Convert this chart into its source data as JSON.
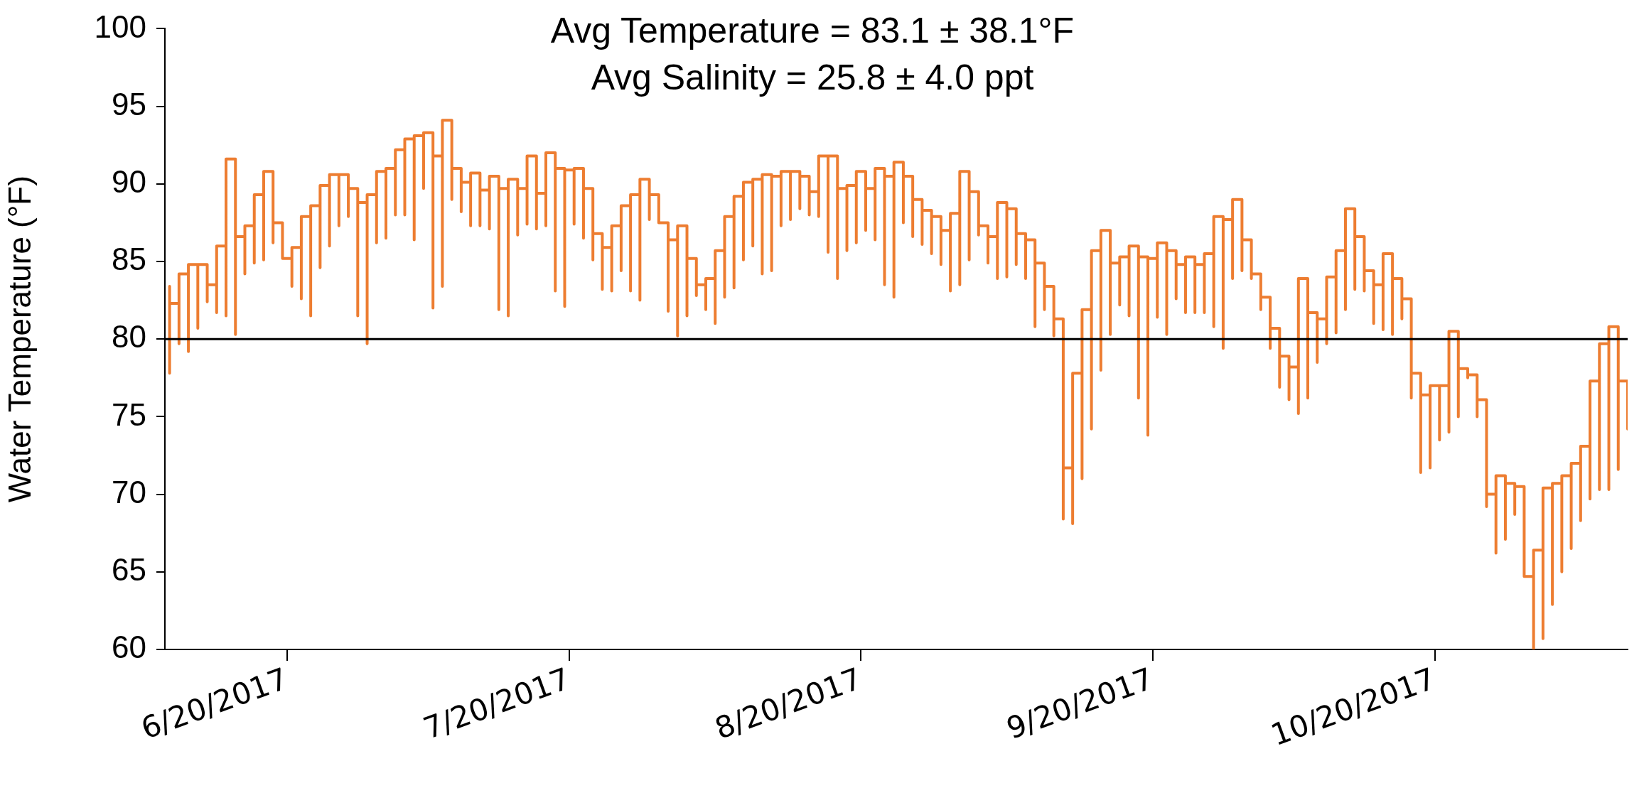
{
  "chart_data": {
    "type": "step",
    "title": "Avg Temperature = 83.1 ± 38.1°F",
    "subtitle": "Avg Salinity = 25.8 ± 4.0 ppt",
    "ylabel": "Water Temperature (°F)",
    "xlim": [
      "2017-06-07",
      "2017-11-09T12:00"
    ],
    "xticks": [
      {
        "value": "2017-06-20",
        "label": "6/20/2017"
      },
      {
        "value": "2017-07-20",
        "label": "7/20/2017"
      },
      {
        "value": "2017-08-20",
        "label": "8/20/2017"
      },
      {
        "value": "2017-09-20",
        "label": "9/20/2017"
      },
      {
        "value": "2017-10-20",
        "label": "10/20/2017"
      }
    ],
    "ylim": [
      60,
      100
    ],
    "yticks": [
      60,
      65,
      70,
      75,
      80,
      85,
      90,
      95,
      100
    ],
    "grid": false,
    "ref_lines": [
      {
        "axis": "y",
        "value": 80,
        "color": "#000000"
      }
    ],
    "color": "#ed7d31",
    "x": [
      "2017-06-07T12:00",
      "2017-06-07T12:00",
      "2017-06-07T12:00",
      "2017-06-08T12:00",
      "2017-06-08T12:00",
      "2017-06-08T12:00",
      "2017-06-09T12:00",
      "2017-06-09T12:00",
      "2017-06-09T12:00",
      "2017-06-10T12:00",
      "2017-06-10T12:00",
      "2017-06-10T12:00",
      "2017-06-11T12:00",
      "2017-06-11T12:00",
      "2017-06-11T12:00",
      "2017-06-12T12:00",
      "2017-06-12T12:00",
      "2017-06-12T12:00",
      "2017-06-13T12:00",
      "2017-06-13T12:00",
      "2017-06-13T12:00",
      "2017-06-14T12:00",
      "2017-06-14T12:00",
      "2017-06-14T12:00",
      "2017-06-15T12:00",
      "2017-06-15T12:00",
      "2017-06-15T12:00",
      "2017-06-16T12:00",
      "2017-06-16T12:00",
      "2017-06-16T12:00",
      "2017-06-17T12:00",
      "2017-06-17T12:00",
      "2017-06-17T12:00",
      "2017-06-18T12:00",
      "2017-06-18T12:00",
      "2017-06-18T12:00",
      "2017-06-19T12:00",
      "2017-06-19T12:00",
      "2017-06-19T12:00",
      "2017-06-20T12:00",
      "2017-06-20T12:00",
      "2017-06-20T12:00",
      "2017-06-21T12:00",
      "2017-06-21T12:00",
      "2017-06-21T12:00",
      "2017-06-22T12:00",
      "2017-06-22T12:00",
      "2017-06-22T12:00",
      "2017-06-23T12:00",
      "2017-06-23T12:00",
      "2017-06-23T12:00",
      "2017-06-24T12:00",
      "2017-06-24T12:00",
      "2017-06-24T12:00",
      "2017-06-25T12:00",
      "2017-06-25T12:00",
      "2017-06-25T12:00",
      "2017-06-26T12:00",
      "2017-06-26T12:00",
      "2017-06-26T12:00",
      "2017-06-27T12:00",
      "2017-06-27T12:00",
      "2017-06-27T12:00",
      "2017-06-28T12:00",
      "2017-06-28T12:00",
      "2017-06-28T12:00",
      "2017-06-29T12:00",
      "2017-06-29T12:00",
      "2017-06-29T12:00",
      "2017-06-30T12:00",
      "2017-06-30T12:00",
      "2017-06-30T12:00",
      "2017-07-01T12:00",
      "2017-07-01T12:00",
      "2017-07-01T12:00",
      "2017-07-02T12:00",
      "2017-07-02T12:00",
      "2017-07-02T12:00",
      "2017-07-03T12:00",
      "2017-07-03T12:00",
      "2017-07-03T12:00",
      "2017-07-04T12:00",
      "2017-07-04T12:00",
      "2017-07-04T12:00",
      "2017-07-05T12:00",
      "2017-07-05T12:00",
      "2017-07-05T12:00",
      "2017-07-06T12:00",
      "2017-07-06T12:00",
      "2017-07-06T12:00",
      "2017-07-07T12:00",
      "2017-07-07T12:00",
      "2017-07-07T12:00",
      "2017-07-08T12:00",
      "2017-07-08T12:00",
      "2017-07-08T12:00",
      "2017-07-09T12:00",
      "2017-07-09T12:00",
      "2017-07-09T12:00",
      "2017-07-10T12:00",
      "2017-07-10T12:00",
      "2017-07-10T12:00",
      "2017-07-11T12:00",
      "2017-07-11T12:00",
      "2017-07-11T12:00",
      "2017-07-12T12:00",
      "2017-07-12T12:00",
      "2017-07-12T12:00",
      "2017-07-13T12:00",
      "2017-07-13T12:00",
      "2017-07-13T12:00",
      "2017-07-14T12:00",
      "2017-07-14T12:00",
      "2017-07-14T12:00",
      "2017-07-15T12:00",
      "2017-07-15T12:00",
      "2017-07-15T12:00",
      "2017-07-16T12:00",
      "2017-07-16T12:00",
      "2017-07-16T12:00",
      "2017-07-17T12:00",
      "2017-07-17T12:00",
      "2017-07-17T12:00",
      "2017-07-18T12:00",
      "2017-07-18T12:00",
      "2017-07-18T12:00",
      "2017-07-19T12:00",
      "2017-07-19T12:00",
      "2017-07-19T12:00",
      "2017-07-20T12:00",
      "2017-07-20T12:00",
      "2017-07-20T12:00",
      "2017-07-21T12:00",
      "2017-07-21T12:00",
      "2017-07-21T12:00",
      "2017-07-22T12:00",
      "2017-07-22T12:00",
      "2017-07-22T12:00",
      "2017-07-23T12:00",
      "2017-07-23T12:00",
      "2017-07-23T12:00",
      "2017-07-24T12:00",
      "2017-07-24T12:00",
      "2017-07-24T12:00",
      "2017-07-25T12:00",
      "2017-07-25T12:00",
      "2017-07-25T12:00",
      "2017-07-26T12:00",
      "2017-07-26T12:00",
      "2017-07-26T12:00",
      "2017-07-27T12:00",
      "2017-07-27T12:00",
      "2017-07-27T12:00",
      "2017-07-28T12:00",
      "2017-07-28T12:00",
      "2017-07-28T12:00",
      "2017-07-29T12:00",
      "2017-07-29T12:00",
      "2017-07-29T12:00",
      "2017-07-30T12:00",
      "2017-07-30T12:00",
      "2017-07-30T12:00",
      "2017-07-31T12:00",
      "2017-07-31T12:00",
      "2017-07-31T12:00",
      "2017-08-01T12:00",
      "2017-08-01T12:00",
      "2017-08-01T12:00",
      "2017-08-02T12:00",
      "2017-08-02T12:00",
      "2017-08-02T12:00",
      "2017-08-03T12:00",
      "2017-08-03T12:00",
      "2017-08-03T12:00",
      "2017-08-04T12:00",
      "2017-08-04T12:00",
      "2017-08-04T12:00",
      "2017-08-05T12:00",
      "2017-08-05T12:00",
      "2017-08-05T12:00",
      "2017-08-06T12:00",
      "2017-08-06T12:00",
      "2017-08-06T12:00",
      "2017-08-07T12:00",
      "2017-08-07T12:00",
      "2017-08-07T12:00",
      "2017-08-08T12:00",
      "2017-08-08T12:00",
      "2017-08-08T12:00",
      "2017-08-09T12:00",
      "2017-08-09T12:00",
      "2017-08-09T12:00",
      "2017-08-10T12:00",
      "2017-08-10T12:00",
      "2017-08-10T12:00",
      "2017-08-11T12:00",
      "2017-08-11T12:00",
      "2017-08-11T12:00",
      "2017-08-12T12:00",
      "2017-08-12T12:00",
      "2017-08-12T12:00",
      "2017-08-13T12:00",
      "2017-08-13T12:00",
      "2017-08-13T12:00",
      "2017-08-14T12:00",
      "2017-08-14T12:00",
      "2017-08-14T12:00",
      "2017-08-15T12:00",
      "2017-08-15T12:00",
      "2017-08-15T12:00",
      "2017-08-16T12:00",
      "2017-08-16T12:00",
      "2017-08-16T12:00",
      "2017-08-17T12:00",
      "2017-08-17T12:00",
      "2017-08-17T12:00",
      "2017-08-18T12:00",
      "2017-08-18T12:00",
      "2017-08-18T12:00",
      "2017-08-19T12:00",
      "2017-08-19T12:00",
      "2017-08-19T12:00",
      "2017-08-20T12:00",
      "2017-08-20T12:00",
      "2017-08-20T12:00",
      "2017-08-21T12:00",
      "2017-08-21T12:00",
      "2017-08-21T12:00",
      "2017-08-22T12:00",
      "2017-08-22T12:00",
      "2017-08-22T12:00",
      "2017-08-23T12:00",
      "2017-08-23T12:00",
      "2017-08-23T12:00",
      "2017-08-24T12:00",
      "2017-08-24T12:00",
      "2017-08-24T12:00",
      "2017-08-25T12:00",
      "2017-08-25T12:00",
      "2017-08-25T12:00",
      "2017-08-26T12:00",
      "2017-08-26T12:00",
      "2017-08-26T12:00",
      "2017-08-27T12:00",
      "2017-08-27T12:00",
      "2017-08-27T12:00",
      "2017-08-28T12:00",
      "2017-08-28T12:00",
      "2017-08-28T12:00",
      "2017-08-29T12:00",
      "2017-08-29T12:00",
      "2017-08-29T12:00",
      "2017-08-30T12:00",
      "2017-08-30T12:00",
      "2017-08-30T12:00",
      "2017-08-31T12:00",
      "2017-08-31T12:00",
      "2017-08-31T12:00",
      "2017-09-01T12:00",
      "2017-09-01T12:00",
      "2017-09-01T12:00",
      "2017-09-02T12:00",
      "2017-09-02T12:00",
      "2017-09-02T12:00",
      "2017-09-03T12:00",
      "2017-09-03T12:00",
      "2017-09-03T12:00",
      "2017-09-04T12:00",
      "2017-09-04T12:00",
      "2017-09-04T12:00",
      "2017-09-05T12:00",
      "2017-09-05T12:00",
      "2017-09-05T12:00",
      "2017-09-06T12:00",
      "2017-09-06T12:00",
      "2017-09-06T12:00",
      "2017-09-07T12:00",
      "2017-09-07T12:00",
      "2017-09-07T12:00",
      "2017-09-08T12:00",
      "2017-09-08T12:00",
      "2017-09-08T12:00",
      "2017-09-09T12:00",
      "2017-09-09T12:00",
      "2017-09-09T12:00",
      "2017-09-10T12:00",
      "2017-09-10T12:00",
      "2017-09-10T12:00",
      "2017-09-11T12:00",
      "2017-09-11T12:00",
      "2017-09-11T12:00",
      "2017-09-12T12:00",
      "2017-09-12T12:00",
      "2017-09-12T12:00",
      "2017-09-13T12:00",
      "2017-09-13T12:00",
      "2017-09-13T12:00",
      "2017-09-14T12:00",
      "2017-09-14T12:00",
      "2017-09-14T12:00",
      "2017-09-15T12:00",
      "2017-09-15T12:00",
      "2017-09-15T12:00",
      "2017-09-16T12:00",
      "2017-09-16T12:00",
      "2017-09-16T12:00",
      "2017-09-17T12:00",
      "2017-09-17T12:00",
      "2017-09-17T12:00",
      "2017-09-18T12:00",
      "2017-09-18T12:00",
      "2017-09-18T12:00",
      "2017-09-19T12:00",
      "2017-09-19T12:00",
      "2017-09-19T12:00",
      "2017-09-20T12:00",
      "2017-09-20T12:00",
      "2017-09-20T12:00",
      "2017-09-21T12:00",
      "2017-09-21T12:00",
      "2017-09-21T12:00",
      "2017-09-22T12:00",
      "2017-09-22T12:00",
      "2017-09-22T12:00",
      "2017-09-23T12:00",
      "2017-09-23T12:00",
      "2017-09-23T12:00",
      "2017-09-24T12:00",
      "2017-09-24T12:00",
      "2017-09-24T12:00",
      "2017-09-25T12:00",
      "2017-09-25T12:00",
      "2017-09-25T12:00",
      "2017-09-26T12:00",
      "2017-09-26T12:00",
      "2017-09-26T12:00",
      "2017-09-27T12:00",
      "2017-09-27T12:00",
      "2017-09-27T12:00",
      "2017-09-28T12:00",
      "2017-09-28T12:00",
      "2017-09-28T12:00",
      "2017-09-29T12:00",
      "2017-09-29T12:00",
      "2017-09-29T12:00",
      "2017-09-30T12:00",
      "2017-09-30T12:00",
      "2017-09-30T12:00",
      "2017-10-01T12:00",
      "2017-10-01T12:00",
      "2017-10-01T12:00",
      "2017-10-02T12:00",
      "2017-10-02T12:00",
      "2017-10-02T12:00",
      "2017-10-03T12:00",
      "2017-10-03T12:00",
      "2017-10-03T12:00",
      "2017-10-04T12:00",
      "2017-10-04T12:00",
      "2017-10-04T12:00",
      "2017-10-05T12:00",
      "2017-10-05T12:00",
      "2017-10-05T12:00",
      "2017-10-06T12:00",
      "2017-10-06T12:00",
      "2017-10-06T12:00",
      "2017-10-07T12:00",
      "2017-10-07T12:00",
      "2017-10-07T12:00",
      "2017-10-08T12:00",
      "2017-10-08T12:00",
      "2017-10-08T12:00",
      "2017-10-09T12:00",
      "2017-10-09T12:00",
      "2017-10-09T12:00",
      "2017-10-10T12:00",
      "2017-10-10T12:00",
      "2017-10-10T12:00",
      "2017-10-11T12:00",
      "2017-10-11T12:00",
      "2017-10-11T12:00",
      "2017-10-12T12:00",
      "2017-10-12T12:00",
      "2017-10-12T12:00",
      "2017-10-13T12:00",
      "2017-10-13T12:00",
      "2017-10-13T12:00",
      "2017-10-14T12:00",
      "2017-10-14T12:00",
      "2017-10-14T12:00",
      "2017-10-15T12:00",
      "2017-10-15T12:00",
      "2017-10-15T12:00",
      "2017-10-16T12:00",
      "2017-10-16T12:00",
      "2017-10-16T12:00",
      "2017-10-17T12:00",
      "2017-10-17T12:00",
      "2017-10-17T12:00",
      "2017-10-18T12:00",
      "2017-10-18T12:00",
      "2017-10-18T12:00",
      "2017-10-19T12:00",
      "2017-10-19T12:00",
      "2017-10-19T12:00",
      "2017-10-20T12:00",
      "2017-10-20T12:00",
      "2017-10-20T12:00",
      "2017-10-21T12:00",
      "2017-10-21T12:00",
      "2017-10-21T12:00",
      "2017-10-22T12:00",
      "2017-10-22T12:00",
      "2017-10-22T12:00",
      "2017-10-23T12:00",
      "2017-10-23T12:00",
      "2017-10-23T12:00",
      "2017-10-24T12:00",
      "2017-10-24T12:00",
      "2017-10-24T12:00",
      "2017-10-25T12:00",
      "2017-10-25T12:00",
      "2017-10-25T12:00",
      "2017-10-26T12:00",
      "2017-10-26T12:00",
      "2017-10-26T12:00",
      "2017-10-27T12:00",
      "2017-10-27T12:00",
      "2017-10-27T12:00",
      "2017-10-28T12:00",
      "2017-10-28T12:00",
      "2017-10-28T12:00",
      "2017-10-29T12:00",
      "2017-10-29T12:00",
      "2017-10-29T12:00",
      "2017-10-30T12:00",
      "2017-10-30T12:00",
      "2017-10-30T12:00",
      "2017-10-31T12:00",
      "2017-10-31T12:00",
      "2017-10-31T12:00",
      "2017-11-01T12:00",
      "2017-11-01T12:00",
      "2017-11-01T12:00",
      "2017-11-02T12:00",
      "2017-11-02T12:00",
      "2017-11-02T12:00",
      "2017-11-03T12:00",
      "2017-11-03T12:00",
      "2017-11-03T12:00",
      "2017-11-04T12:00",
      "2017-11-04T12:00",
      "2017-11-04T12:00",
      "2017-11-05T12:00",
      "2017-11-05T12:00",
      "2017-11-05T12:00",
      "2017-11-06T12:00",
      "2017-11-06T12:00",
      "2017-11-06T12:00",
      "2017-11-07T12:00",
      "2017-11-07T12:00",
      "2017-11-07T12:00",
      "2017-11-08T12:00",
      "2017-11-08T12:00",
      "2017-11-08T12:00",
      "2017-11-09T12:00",
      "2017-11-09T12:00",
      "2017-11-09T12:00"
    ],
    "values": [
      83.4,
      77.8,
      82.1,
      82.3,
      79.7,
      80.3,
      84.2,
      79.2,
      82.5,
      84.8,
      80.7,
      83.7,
      84.8,
      82.4,
      82.9,
      83.5,
      81.7,
      81.7,
      86.0,
      81.5,
      83.7,
      91.6,
      80.3,
      85.7,
      86.6,
      84.2,
      86.5,
      87.3,
      84.9,
      85.9,
      89.3,
      85.1,
      86.9,
      90.8,
      86.2,
      87.7,
      87.5,
      85.3,
      85.3,
      85.2,
      83.4,
      84.0,
      85.9,
      82.6,
      84.3,
      87.9,
      81.5,
      86.8,
      88.6,
      84.6,
      87.3,
      89.9,
      86.0,
      89.1,
      90.6,
      87.3,
      89.0,
      90.6,
      87.9,
      88.1,
      89.7,
      81.5,
      82.8,
      88.8,
      79.7,
      87.1,
      89.3,
      86.2,
      87.7,
      90.8,
      86.5,
      88.7,
      91.0,
      88.0,
      88.7,
      92.2,
      88.0,
      90.1,
      92.9,
      86.4,
      91.4,
      93.1,
      89.7,
      91.4,
      93.3,
      82.0,
      83.6,
      91.8,
      83.4,
      90.7,
      94.1,
      89.0,
      90.9,
      91.0,
      88.2,
      89.0,
      90.1,
      87.3,
      89.0,
      90.7,
      87.3,
      88.6,
      89.6,
      87.1,
      88.3,
      90.5,
      82.2,
      81.9,
      89.7,
      81.5,
      87.8,
      90.3,
      86.7,
      89.4,
      89.7,
      87.4,
      87.8,
      91.8,
      87.1,
      88.0,
      89.4,
      87.3,
      87.4,
      92.0,
      83.1,
      84.1,
      91.0,
      82.1,
      89.2,
      90.9,
      87.4,
      89.0,
      91.0,
      86.5,
      89.5,
      89.7,
      85.1,
      86.1,
      86.8,
      83.2,
      83.3,
      85.9,
      83.1,
      85.4,
      87.3,
      84.4,
      86.8,
      88.6,
      83.1,
      84.1,
      89.3,
      82.5,
      88.6,
      90.3,
      87.7,
      88.6,
      89.3,
      87.5,
      87.5,
      87.5,
      81.9,
      81.8,
      86.4,
      80.2,
      83.2,
      87.3,
      81.5,
      85.2,
      85.2,
      82.8,
      82.8,
      83.5,
      81.9,
      82.3,
      83.9,
      81.0,
      83.0,
      85.7,
      82.7,
      84.2,
      87.9,
      83.3,
      86.8,
      89.2,
      85.1,
      88.1,
      90.1,
      86.0,
      88.8,
      90.3,
      84.2,
      84.7,
      90.6,
      84.4,
      88.5,
      90.5,
      87.3,
      89.4,
      90.8,
      87.7,
      89.8,
      90.8,
      88.4,
      89.2,
      90.5,
      88.0,
      88.8,
      89.5,
      87.9,
      88.3,
      91.8,
      85.7,
      85.6,
      91.8,
      83.9,
      89.8,
      89.7,
      85.7,
      87.4,
      89.9,
      86.2,
      89.0,
      90.8,
      87.0,
      88.8,
      89.7,
      86.4,
      87.9,
      91.0,
      83.5,
      83.7,
      90.5,
      82.7,
      89.1,
      91.4,
      87.5,
      89.3,
      90.5,
      86.6,
      88.3,
      89.0,
      86.2,
      86.1,
      88.3,
      85.7,
      85.5,
      87.9,
      84.8,
      86.0,
      87.0,
      83.1,
      83.4,
      88.1,
      83.5,
      85.9,
      90.8,
      85.1,
      88.0,
      89.5,
      86.7,
      87.3,
      87.3,
      84.9,
      85.3,
      86.6,
      83.9,
      86.1,
      88.8,
      84.0,
      87.2,
      88.4,
      84.8,
      86.8,
      86.8,
      83.9,
      84.5,
      86.4,
      80.8,
      84.3,
      84.9,
      81.9,
      82.3,
      83.4,
      80.3,
      80.2,
      81.3,
      68.4,
      68.8,
      71.7,
      68.1,
      71.4,
      77.8,
      71.0,
      75.5,
      81.9,
      74.2,
      79.0,
      85.7,
      78.0,
      81.7,
      87.0,
      80.3,
      83.8,
      84.9,
      82.2,
      83.3,
      85.3,
      81.5,
      83.5,
      86.0,
      76.2,
      82.1,
      85.3,
      73.8,
      84.4,
      85.2,
      81.5,
      81.4,
      86.2,
      80.3,
      84.8,
      85.7,
      82.6,
      83.7,
      84.8,
      81.7,
      83.4,
      85.3,
      81.7,
      83.2,
      84.8,
      81.7,
      83.4,
      85.5,
      80.8,
      81.3,
      87.9,
      79.4,
      84.9,
      87.7,
      83.9,
      84.9,
      89.0,
      84.4,
      85.6,
      86.4,
      83.9,
      84.1,
      84.2,
      81.9,
      82.7,
      82.7,
      79.4,
      80.7,
      80.7,
      76.9,
      78.7,
      78.9,
      76.1,
      78.1,
      78.2,
      75.2,
      77.7,
      83.9,
      76.2,
      79.0,
      81.7,
      78.5,
      80.5,
      81.3,
      79.7,
      80.9,
      84.0,
      80.4,
      83.5,
      85.7,
      81.9,
      84.6,
      88.4,
      83.2,
      84.0,
      86.6,
      83.2,
      83.1,
      84.4,
      81.0,
      82.0,
      83.5,
      80.6,
      82.0,
      85.5,
      80.3,
      82.8,
      83.9,
      81.3,
      82.6,
      82.6,
      76.2,
      78.1,
      77.8,
      71.4,
      75.7,
      76.4,
      71.7,
      75.9,
      77.0,
      73.5,
      76.1,
      77.0,
      74.0,
      76.3,
      80.5,
      75.0,
      78.2,
      78.1,
      77.5,
      77.7,
      77.7,
      75.0,
      75.9,
      76.1,
      69.3,
      69.2,
      70.0,
      66.2,
      68.5,
      71.2,
      67.1,
      69.0,
      70.7,
      68.7,
      70.2,
      70.5,
      65.0,
      64.8,
      64.7,
      60.0,
      61.9,
      66.4,
      60.7,
      64.3,
      70.4,
      62.9,
      66.0,
      70.7,
      65.0,
      67.6,
      71.2,
      66.5,
      69.8,
      72.0,
      68.3,
      71.3,
      73.1,
      69.7,
      72.6,
      77.3,
      70.3,
      75.4,
      79.7,
      70.3,
      76.0,
      80.8,
      71.6,
      77.2,
      77.3,
      74.2,
      75.6
    ]
  }
}
